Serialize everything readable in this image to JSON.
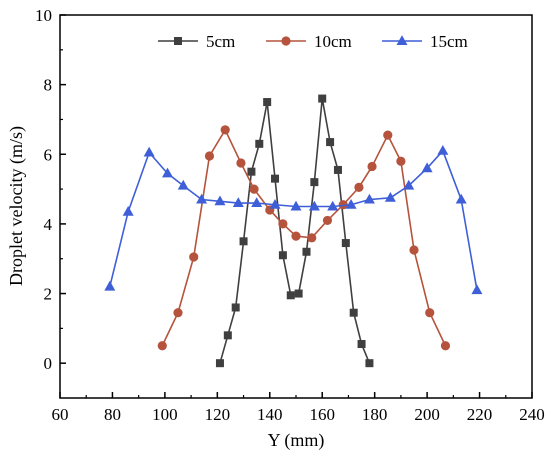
{
  "chart_data": {
    "type": "line",
    "xlabel": "Y (mm)",
    "ylabel": "Droplet velocity (m/s)",
    "xlim": [
      60,
      240
    ],
    "ylim": [
      -1,
      10
    ],
    "x_ticks": [
      60,
      80,
      100,
      120,
      140,
      160,
      180,
      200,
      220,
      240
    ],
    "y_ticks": [
      0,
      2,
      4,
      6,
      8,
      10
    ],
    "grid": false,
    "legend_position": "top",
    "series": [
      {
        "name": "5cm",
        "color": "#3f3f3f",
        "marker": "square",
        "x": [
          121,
          124,
          127,
          130,
          133,
          136,
          139,
          142,
          145,
          148,
          151,
          154,
          157,
          160,
          163,
          166,
          169,
          172,
          175,
          178
        ],
        "y": [
          0.0,
          0.8,
          1.6,
          3.5,
          5.5,
          6.3,
          7.5,
          5.3,
          3.1,
          1.95,
          2.0,
          3.2,
          5.2,
          7.6,
          6.35,
          5.55,
          3.45,
          1.45,
          0.55,
          0.0
        ]
      },
      {
        "name": "10cm",
        "color": "#b5533c",
        "marker": "circle",
        "x": [
          99,
          105,
          111,
          117,
          123,
          129,
          134,
          140,
          145,
          150,
          156,
          162,
          168,
          174,
          179,
          185,
          190,
          195,
          201,
          207
        ],
        "y": [
          0.5,
          1.45,
          3.05,
          5.95,
          6.7,
          5.75,
          5.0,
          4.4,
          4.0,
          3.65,
          3.6,
          4.1,
          4.55,
          5.05,
          5.65,
          6.55,
          5.8,
          3.25,
          1.45,
          0.5
        ]
      },
      {
        "name": "15cm",
        "color": "#3f5fd8",
        "marker": "triangle",
        "x": [
          79,
          86,
          94,
          101,
          107,
          114,
          121,
          128,
          135,
          142,
          150,
          157,
          164,
          171,
          178,
          186,
          193,
          200,
          206,
          213,
          219
        ],
        "y": [
          2.2,
          4.35,
          6.05,
          5.45,
          5.1,
          4.7,
          4.65,
          4.6,
          4.6,
          4.55,
          4.5,
          4.5,
          4.5,
          4.55,
          4.7,
          4.75,
          5.1,
          5.6,
          6.1,
          4.7,
          2.1
        ]
      }
    ]
  }
}
